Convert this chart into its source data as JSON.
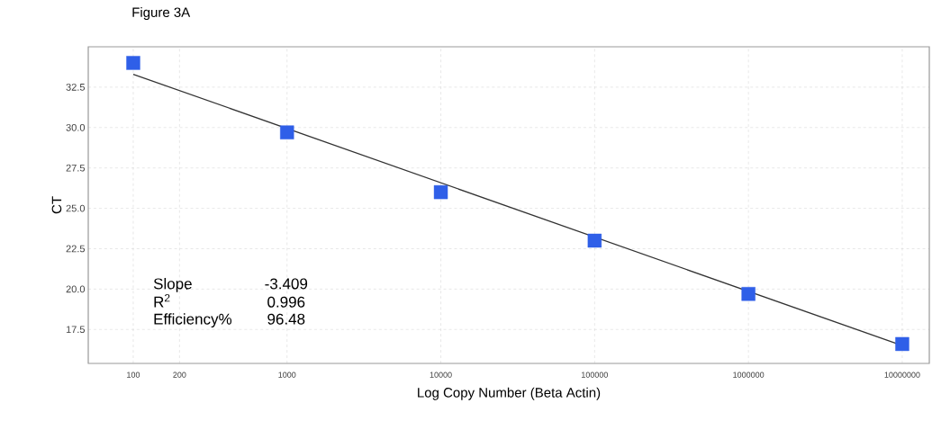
{
  "chart_data": {
    "type": "scatter",
    "title": "Figure 3A",
    "xlabel": "Log Copy Number (Beta Actin)",
    "ylabel": "CT",
    "log": "x",
    "grid": true,
    "xlim": [
      51,
      15000000
    ],
    "ylim": [
      15.4,
      35
    ],
    "xticks": [
      100,
      200,
      1000,
      10000,
      100000,
      1000000,
      10000000
    ],
    "yticks": [
      17.5,
      {
        "value": 20,
        "label": "20.0"
      },
      22.5,
      {
        "value": 25,
        "label": "25.0"
      },
      27.5,
      {
        "value": 30,
        "label": "30.0"
      },
      32.5
    ],
    "series": [
      {
        "marker": "square",
        "color": "#2f5fe8",
        "x": [
          100,
          1000,
          10000,
          100000,
          1000000,
          10000000
        ],
        "values": [
          34.0,
          29.7,
          26.0,
          23.0,
          19.7,
          16.6
        ]
      },
      {
        "type": "line",
        "marker": "none",
        "color": "#333333",
        "x": [
          100,
          10000000
        ],
        "values": [
          33.3,
          16.5
        ]
      }
    ],
    "annotations": [
      "Slope",
      "-3.409",
      "R$^{2}$",
      "0.996",
      "Efficiency%",
      "96.48"
    ]
  }
}
